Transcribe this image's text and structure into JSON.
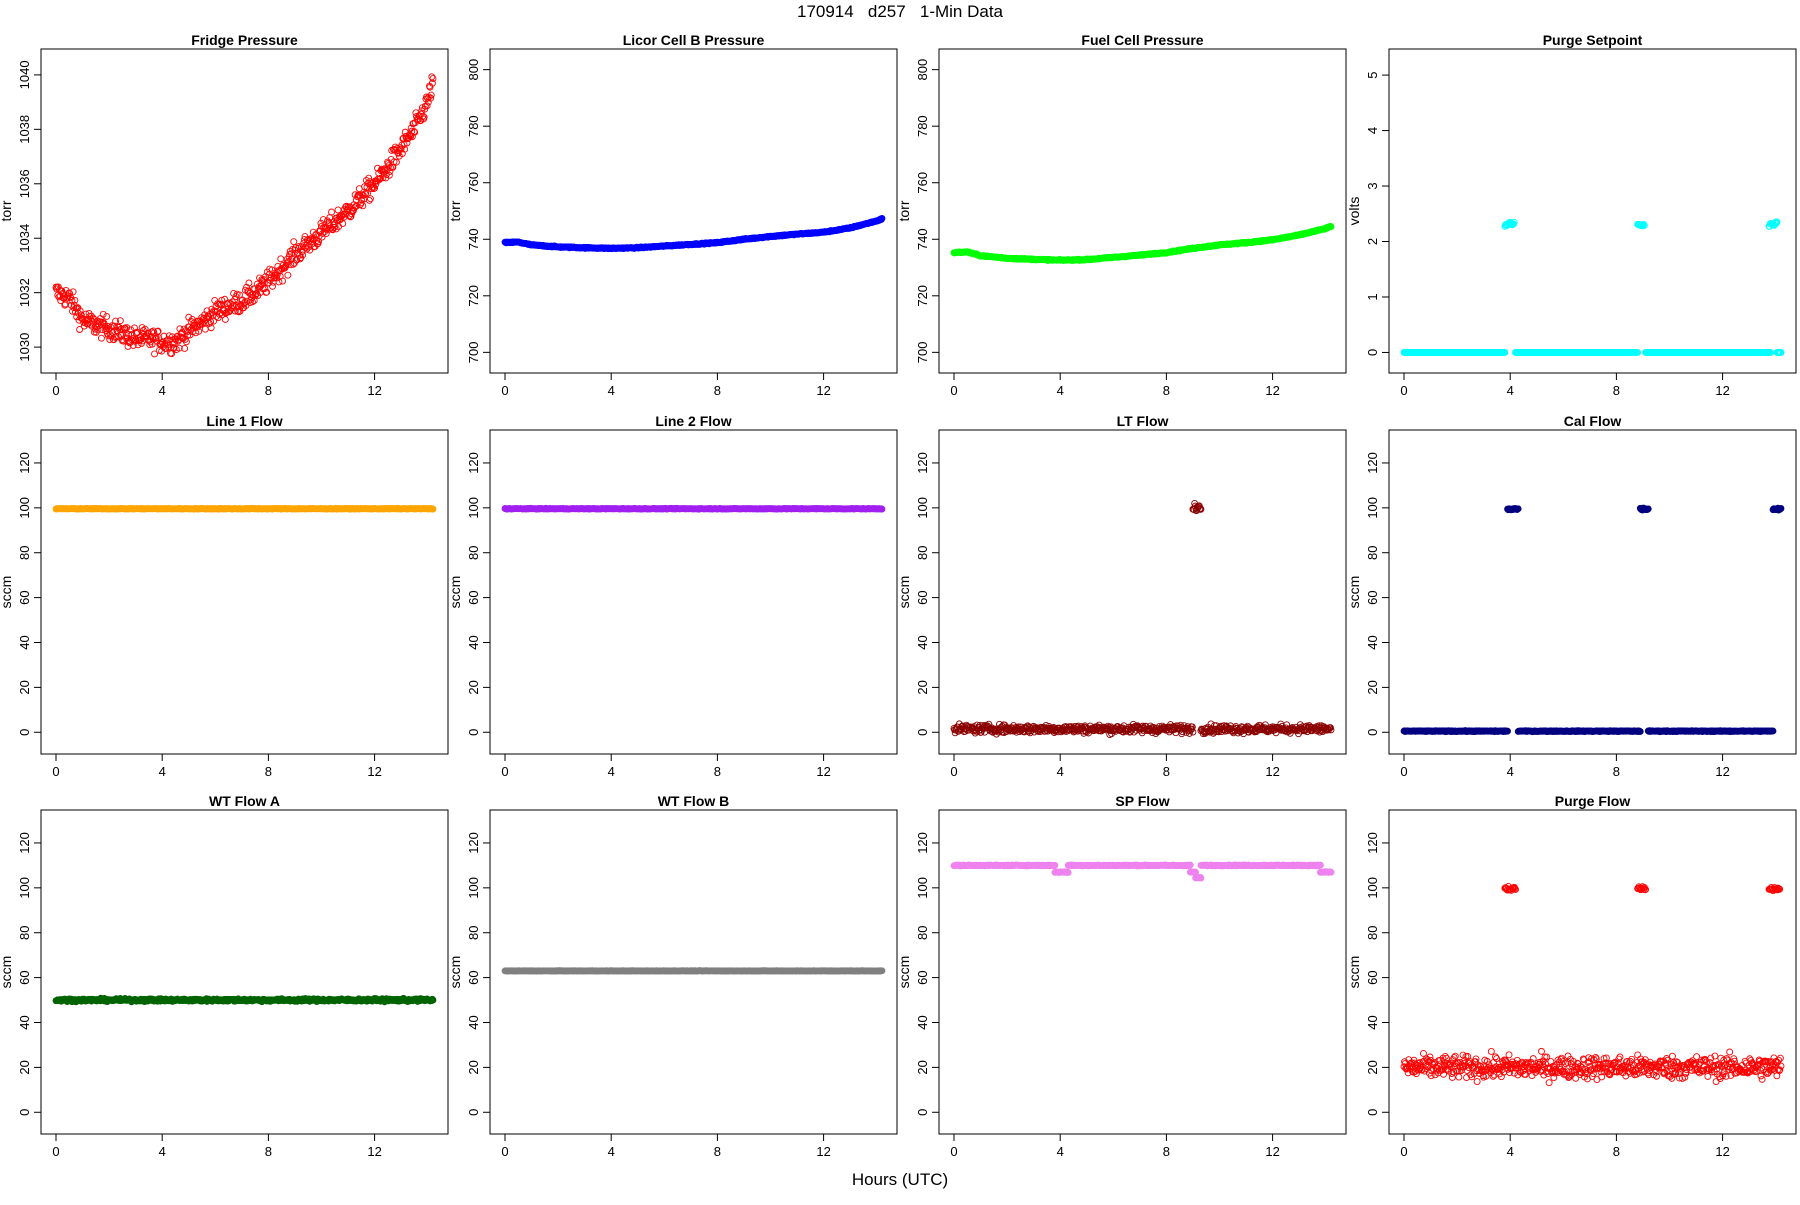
{
  "figure": {
    "title": "170914   d257   1-Min Data",
    "xlabel": "Hours (UTC)"
  },
  "chart_data": [
    {
      "type": "scatter",
      "title": "Fridge Pressure",
      "ylabel": "torr",
      "xlim": [
        0,
        14.2
      ],
      "ylim": [
        1029.6,
        1040.4
      ],
      "xticks": [
        0,
        4,
        8,
        12
      ],
      "yticks": [
        1030,
        1032,
        1034,
        1036,
        1038,
        1040
      ],
      "marker": "open",
      "color": "#ff0000",
      "series": [
        {
          "x": [
            0,
            0.5,
            1,
            1.5,
            2,
            2.5,
            3,
            3.5,
            4,
            4.5,
            5,
            5.5,
            6,
            6.5,
            7,
            7.5,
            8,
            8.5,
            9,
            9.5,
            10,
            10.5,
            11,
            11.5,
            12,
            12.5,
            13,
            13.5,
            14,
            14.2
          ],
          "y": [
            1032.0,
            1031.8,
            1031.0,
            1030.8,
            1030.7,
            1030.5,
            1030.3,
            1030.3,
            1030.2,
            1030.2,
            1030.6,
            1030.9,
            1031.3,
            1031.5,
            1031.7,
            1032.0,
            1032.4,
            1032.9,
            1033.4,
            1033.8,
            1034.2,
            1034.6,
            1035.0,
            1035.5,
            1036.0,
            1036.6,
            1037.3,
            1038.0,
            1039.0,
            1039.8
          ],
          "jitter": 0.4
        }
      ]
    },
    {
      "type": "scatter",
      "title": "Licor Cell B Pressure",
      "ylabel": "torr",
      "xlim": [
        0,
        14.2
      ],
      "ylim": [
        698,
        802
      ],
      "xticks": [
        0,
        4,
        8,
        12
      ],
      "yticks": [
        700,
        720,
        740,
        760,
        780,
        800
      ],
      "marker": "filled",
      "color": "#0000ff",
      "series": [
        {
          "x": [
            0,
            0.5,
            1,
            2,
            3,
            4,
            5,
            6,
            7,
            8,
            9,
            10,
            11,
            12,
            13,
            14,
            14.2
          ],
          "y": [
            738.8,
            739.0,
            738.0,
            737.3,
            737.0,
            736.8,
            737.0,
            737.6,
            738.2,
            738.8,
            740.0,
            741.0,
            741.8,
            742.5,
            744.0,
            746.5,
            747.2
          ],
          "jitter": 0.2
        }
      ]
    },
    {
      "type": "scatter",
      "title": "Fuel Cell Pressure",
      "ylabel": "torr",
      "xlim": [
        0,
        14.2
      ],
      "ylim": [
        698,
        802
      ],
      "xticks": [
        0,
        4,
        8,
        12
      ],
      "yticks": [
        700,
        720,
        740,
        760,
        780,
        800
      ],
      "marker": "filled",
      "color": "#00ff00",
      "series": [
        {
          "x": [
            0,
            0.5,
            1,
            2,
            3,
            4,
            5,
            6,
            7,
            8,
            9,
            10,
            11,
            12,
            13,
            14,
            14.2
          ],
          "y": [
            735.3,
            735.5,
            734.2,
            733.3,
            732.9,
            732.6,
            732.8,
            733.6,
            734.4,
            735.3,
            736.8,
            738.0,
            738.8,
            739.8,
            741.5,
            743.8,
            744.6
          ],
          "jitter": 0.2
        }
      ]
    },
    {
      "type": "scatter",
      "title": "Purge Setpoint",
      "ylabel": "volts",
      "xlim": [
        0,
        14.2
      ],
      "ylim": [
        -0.1,
        5.2
      ],
      "xticks": [
        0,
        4,
        8,
        12
      ],
      "yticks": [
        0,
        1,
        2,
        3,
        4,
        5
      ],
      "marker": "open",
      "color": "#00ffff",
      "series": [
        {
          "x": [
            0,
            3.8
          ],
          "y": [
            0,
            0
          ],
          "jitter": 0
        },
        {
          "x": [
            4.2,
            8.8
          ],
          "y": [
            0,
            0
          ],
          "jitter": 0
        },
        {
          "x": [
            9.1,
            13.8
          ],
          "y": [
            0,
            0
          ],
          "jitter": 0
        },
        {
          "x": [
            14.05,
            14.2
          ],
          "y": [
            0,
            0
          ],
          "jitter": 0
        },
        {
          "x": [
            3.8,
            4.15
          ],
          "y": [
            2.3,
            2.33
          ],
          "jitter": 0.03
        },
        {
          "x": [
            8.8,
            9.05
          ],
          "y": [
            2.3,
            2.3
          ],
          "jitter": 0.02
        },
        {
          "x": [
            13.75,
            14.05
          ],
          "y": [
            2.3,
            2.33
          ],
          "jitter": 0.03
        }
      ]
    },
    {
      "type": "scatter",
      "title": "Line 1 Flow",
      "ylabel": "sccm",
      "xlim": [
        0,
        14.2
      ],
      "ylim": [
        -3,
        128
      ],
      "xticks": [
        0,
        4,
        8,
        12
      ],
      "yticks": [
        0,
        20,
        40,
        60,
        80,
        100,
        120
      ],
      "marker": "filled",
      "color": "#ffa500",
      "series": [
        {
          "x": [
            0,
            14.2
          ],
          "y": [
            99.6,
            99.6
          ],
          "jitter": 0.15
        }
      ]
    },
    {
      "type": "scatter",
      "title": "Line 2 Flow",
      "ylabel": "sccm",
      "xlim": [
        0,
        14.2
      ],
      "ylim": [
        -3,
        128
      ],
      "xticks": [
        0,
        4,
        8,
        12
      ],
      "yticks": [
        0,
        20,
        40,
        60,
        80,
        100,
        120
      ],
      "marker": "filled",
      "color": "#a020f0",
      "series": [
        {
          "x": [
            0,
            14.2
          ],
          "y": [
            99.6,
            99.6
          ],
          "jitter": 0.15
        }
      ]
    },
    {
      "type": "scatter",
      "title": "LT Flow",
      "ylabel": "sccm",
      "xlim": [
        0,
        14.2
      ],
      "ylim": [
        -3,
        128
      ],
      "xticks": [
        0,
        4,
        8,
        12
      ],
      "yticks": [
        0,
        20,
        40,
        60,
        80,
        100,
        120
      ],
      "marker": "open",
      "color": "#8b0000",
      "series": [
        {
          "x": [
            0,
            9.0
          ],
          "y": [
            1.5,
            1.5
          ],
          "jitter": 1.8
        },
        {
          "x": [
            9.3,
            14.2
          ],
          "y": [
            1.5,
            1.5
          ],
          "jitter": 1.8
        },
        {
          "x": [
            9.0,
            9.3
          ],
          "y": [
            99.5,
            99.5
          ],
          "jitter": 1.8
        }
      ]
    },
    {
      "type": "scatter",
      "title": "Cal Flow",
      "ylabel": "sccm",
      "xlim": [
        0,
        14.2
      ],
      "ylim": [
        -3,
        128
      ],
      "xticks": [
        0,
        4,
        8,
        12
      ],
      "yticks": [
        0,
        20,
        40,
        60,
        80,
        100,
        120
      ],
      "marker": "filled",
      "color": "#000080",
      "series": [
        {
          "x": [
            0,
            3.9
          ],
          "y": [
            0.5,
            0.5
          ],
          "jitter": 0.2
        },
        {
          "x": [
            4.3,
            8.9
          ],
          "y": [
            0.5,
            0.5
          ],
          "jitter": 0.2
        },
        {
          "x": [
            9.2,
            13.9
          ],
          "y": [
            0.5,
            0.5
          ],
          "jitter": 0.2
        },
        {
          "x": [
            3.9,
            4.3
          ],
          "y": [
            99.5,
            99.5
          ],
          "jitter": 0.5
        },
        {
          "x": [
            8.9,
            9.2
          ],
          "y": [
            99.5,
            99.5
          ],
          "jitter": 0.5
        },
        {
          "x": [
            13.9,
            14.2
          ],
          "y": [
            99.5,
            99.5
          ],
          "jitter": 0.5
        }
      ]
    },
    {
      "type": "scatter",
      "title": "WT Flow A",
      "ylabel": "sccm",
      "xlim": [
        0,
        14.2
      ],
      "ylim": [
        -3,
        128
      ],
      "xticks": [
        0,
        4,
        8,
        12
      ],
      "yticks": [
        0,
        20,
        40,
        60,
        80,
        100,
        120
      ],
      "marker": "filled",
      "color": "#006400",
      "series": [
        {
          "x": [
            0,
            14.2
          ],
          "y": [
            50,
            50
          ],
          "jitter": 0.6
        }
      ]
    },
    {
      "type": "scatter",
      "title": "WT Flow B",
      "ylabel": "sccm",
      "xlim": [
        0,
        14.2
      ],
      "ylim": [
        -3,
        128
      ],
      "xticks": [
        0,
        4,
        8,
        12
      ],
      "yticks": [
        0,
        20,
        40,
        60,
        80,
        100,
        120
      ],
      "marker": "filled",
      "color": "#808080",
      "series": [
        {
          "x": [
            0,
            14.2
          ],
          "y": [
            63,
            63
          ],
          "jitter": 0.1
        }
      ]
    },
    {
      "type": "scatter",
      "title": "SP Flow",
      "ylabel": "sccm",
      "xlim": [
        0,
        14.2
      ],
      "ylim": [
        -3,
        128
      ],
      "xticks": [
        0,
        4,
        8,
        12
      ],
      "yticks": [
        0,
        20,
        40,
        60,
        80,
        100,
        120
      ],
      "marker": "filled",
      "color": "#ee82ee",
      "series": [
        {
          "x": [
            0,
            3.8
          ],
          "y": [
            110,
            110
          ],
          "jitter": 0.2
        },
        {
          "x": [
            3.8,
            4.3
          ],
          "y": [
            107,
            107
          ],
          "jitter": 0.2
        },
        {
          "x": [
            4.3,
            8.9
          ],
          "y": [
            110,
            110
          ],
          "jitter": 0.2
        },
        {
          "x": [
            8.9,
            9.1
          ],
          "y": [
            107,
            107
          ],
          "jitter": 0.2
        },
        {
          "x": [
            9.1,
            9.3
          ],
          "y": [
            104.5,
            104.5
          ],
          "jitter": 0.2
        },
        {
          "x": [
            9.3,
            13.8
          ],
          "y": [
            110,
            110
          ],
          "jitter": 0.2
        },
        {
          "x": [
            13.8,
            14.2
          ],
          "y": [
            107,
            107
          ],
          "jitter": 0.2
        }
      ]
    },
    {
      "type": "scatter",
      "title": "Purge Flow",
      "ylabel": "sccm",
      "xlim": [
        0,
        14.2
      ],
      "ylim": [
        -3,
        128
      ],
      "xticks": [
        0,
        4,
        8,
        12
      ],
      "yticks": [
        0,
        20,
        40,
        60,
        80,
        100,
        120
      ],
      "marker": "open",
      "color": "#ff0000",
      "series": [
        {
          "x": [
            0,
            14.2
          ],
          "y": [
            20,
            20
          ],
          "jitter": 5
        },
        {
          "x": [
            3.8,
            4.2
          ],
          "y": [
            99.8,
            99.8
          ],
          "jitter": 1.2
        },
        {
          "x": [
            8.8,
            9.1
          ],
          "y": [
            99.8,
            99.8
          ],
          "jitter": 0.8
        },
        {
          "x": [
            13.75,
            14.15
          ],
          "y": [
            99.6,
            99.6
          ],
          "jitter": 0.8
        }
      ]
    }
  ]
}
